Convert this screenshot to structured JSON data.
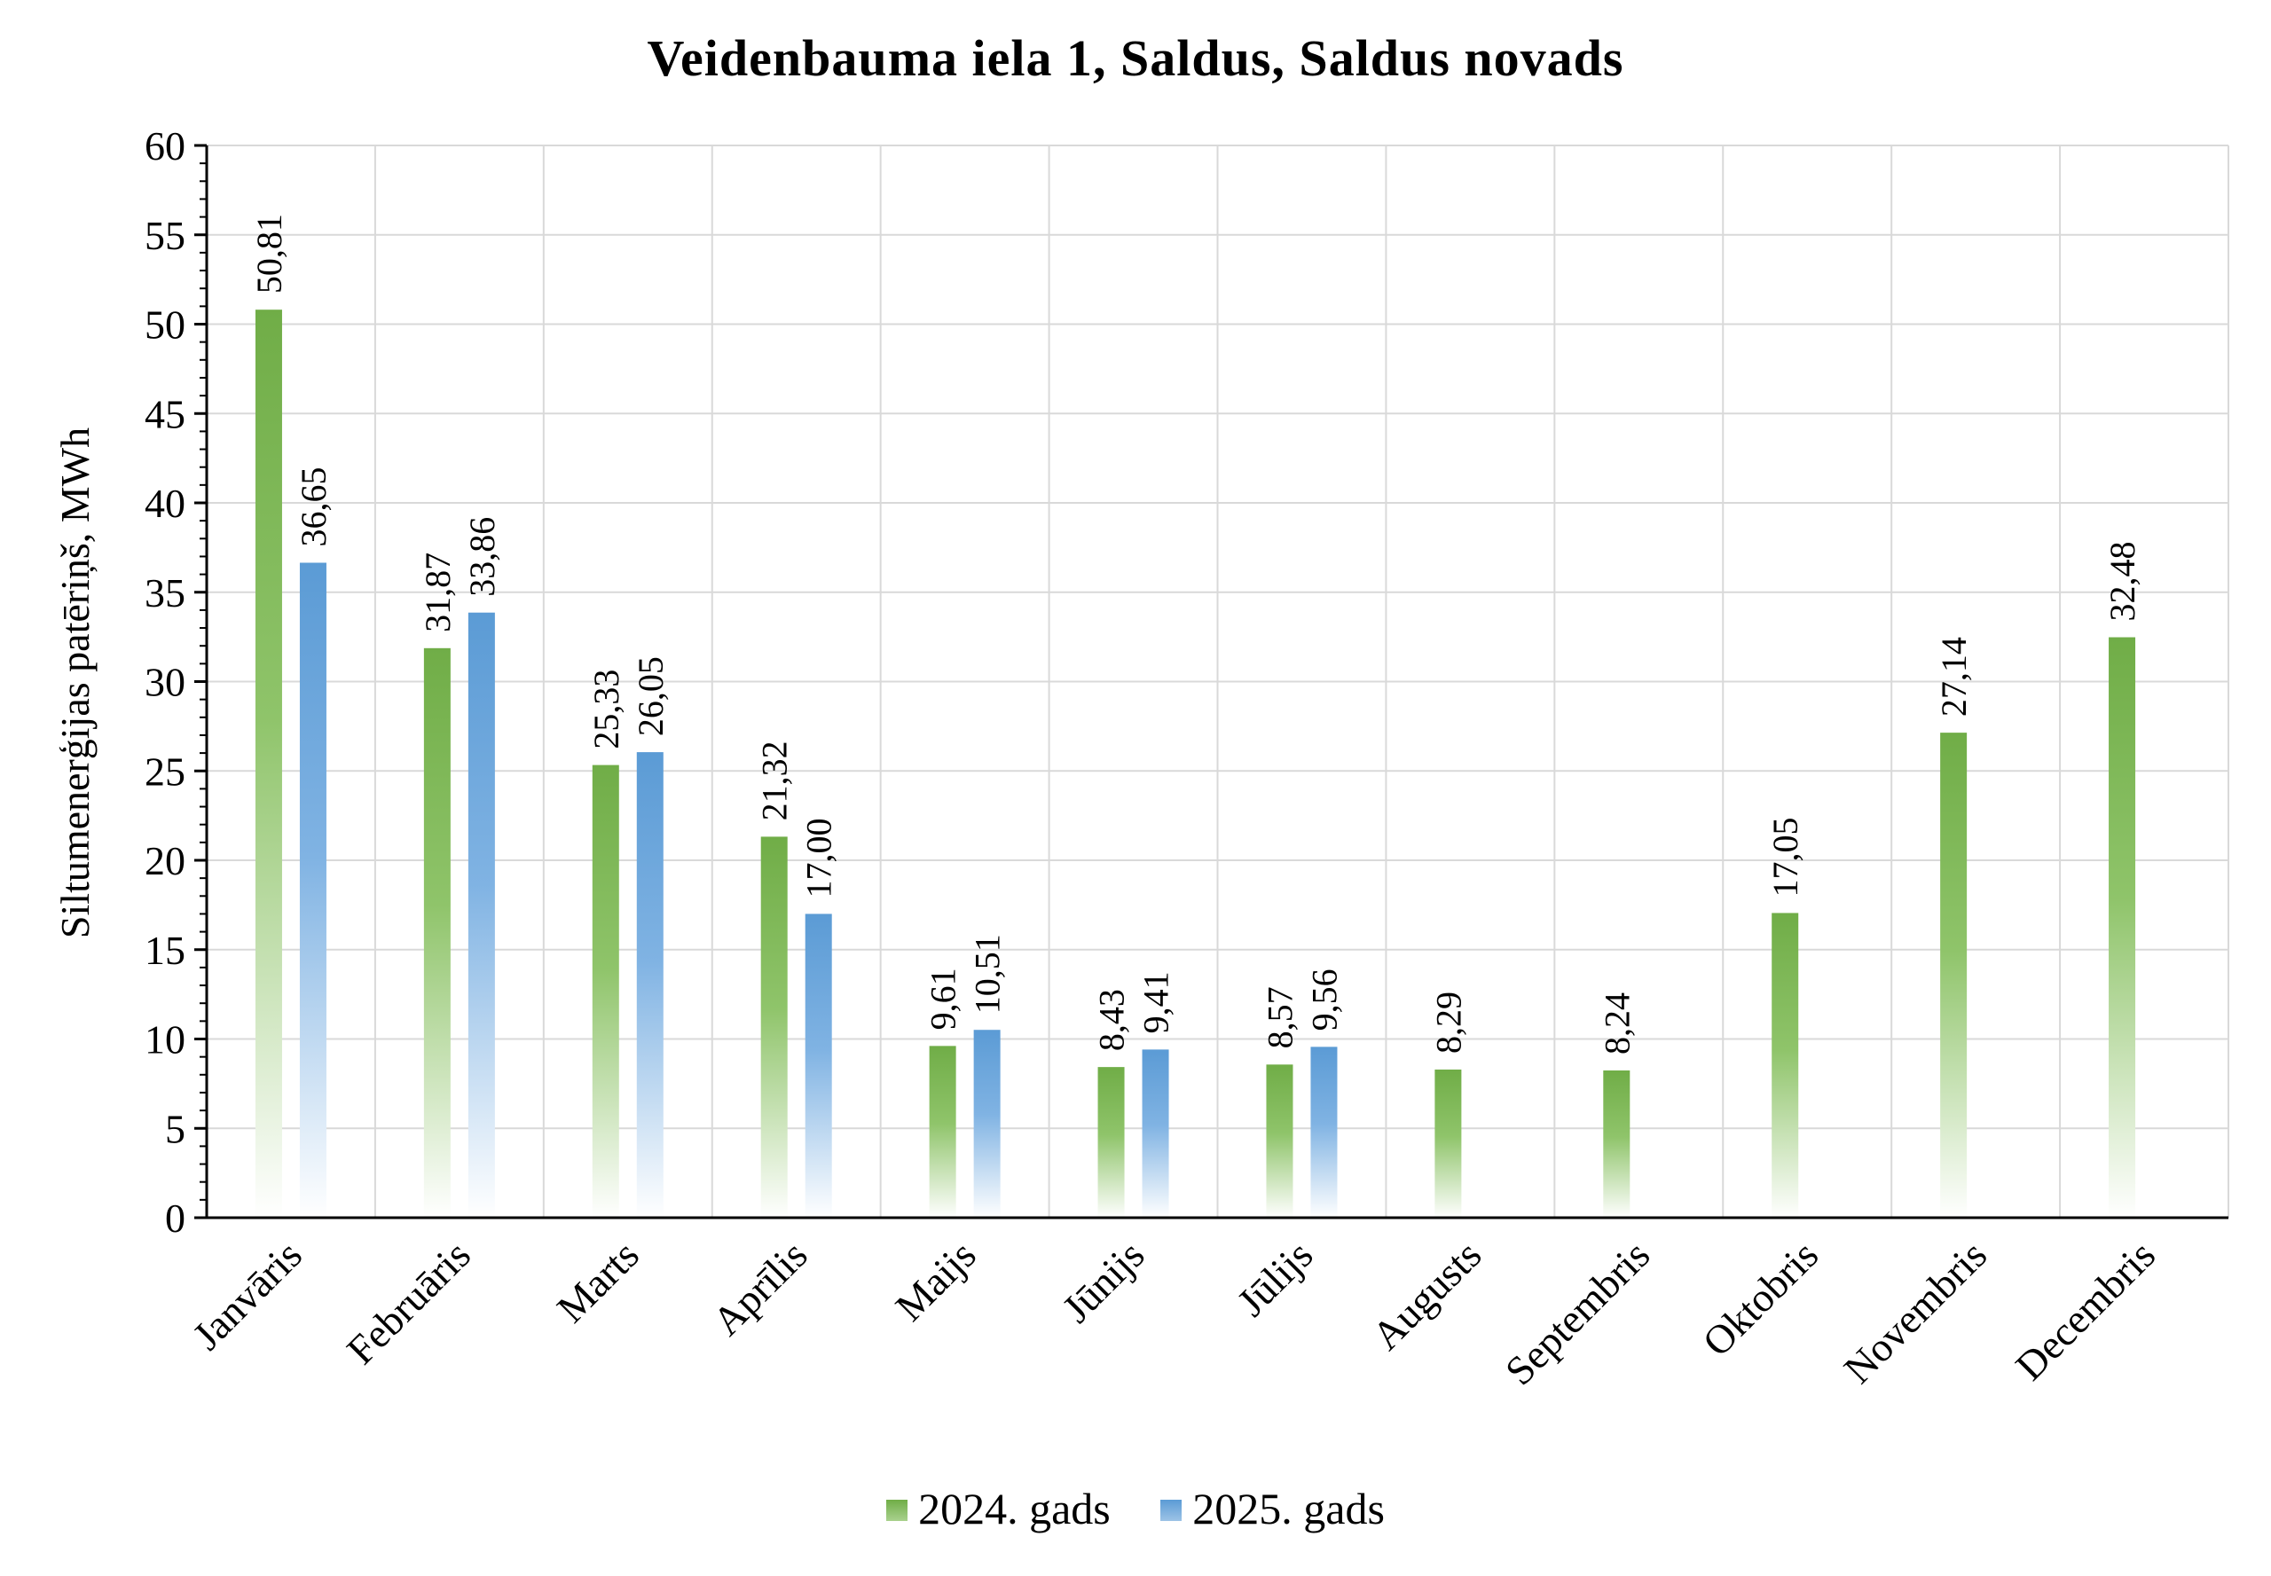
{
  "chart_data": {
    "type": "bar",
    "title": "Veidenbauma iela 1, Saldus, Saldus novads",
    "ylabel": "Siltumenerģijas patēriņš, MWh",
    "xlabel": "",
    "ylim": [
      0,
      60
    ],
    "yticks": [
      0,
      5,
      10,
      15,
      20,
      25,
      30,
      35,
      40,
      45,
      50,
      55,
      60
    ],
    "grid": true,
    "legend_position": "bottom",
    "categories": [
      "Janvāris",
      "Februāris",
      "Marts",
      "Aprīlis",
      "Maijs",
      "Jūnijs",
      "Jūlijs",
      "Augusts",
      "Septembris",
      "Oktobris",
      "Novembris",
      "Decembris"
    ],
    "series": [
      {
        "name": "2024. gads",
        "color": "#70ad47",
        "values": [
          50.81,
          31.87,
          25.33,
          21.32,
          9.61,
          8.43,
          8.57,
          8.29,
          8.24,
          17.05,
          27.14,
          32.48
        ],
        "labels": [
          "50,81",
          "31,87",
          "25,33",
          "21,32",
          "9,61",
          "8,43",
          "8,57",
          "8,29",
          "8,24",
          "17,05",
          "27,14",
          "32,48"
        ]
      },
      {
        "name": "2025. gads",
        "color": "#5b9bd5",
        "values": [
          36.65,
          33.86,
          26.05,
          17.0,
          10.51,
          9.41,
          9.56,
          null,
          null,
          null,
          null,
          null
        ],
        "labels": [
          "36,65",
          "33,86",
          "26,05",
          "17,00",
          "10,51",
          "9,41",
          "9,56",
          null,
          null,
          null,
          null,
          null
        ]
      }
    ]
  }
}
